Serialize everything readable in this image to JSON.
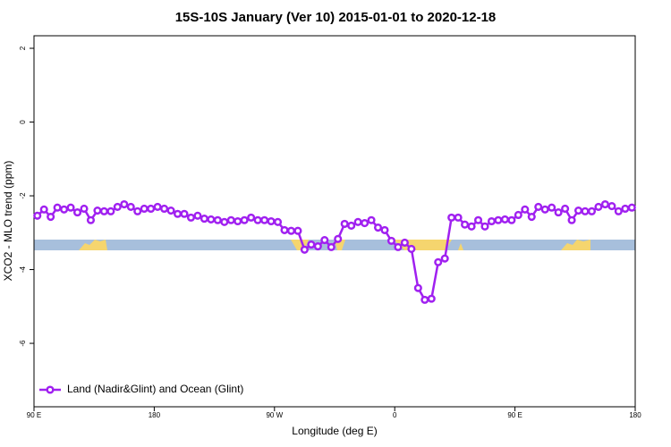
{
  "chart_data": {
    "type": "line",
    "title": "15S-10S January (Ver 10)   2015-01-01 to 2020-12-18",
    "x_label": "Longitude (deg E)",
    "y_label": "XCO2 - MLO trend (ppm)",
    "x": [
      92.5,
      97.5,
      102.5,
      107.5,
      112.5,
      117.5,
      122.5,
      127.5,
      132.5,
      137.5,
      142.5,
      147.5,
      152.5,
      157.5,
      162.5,
      167.5,
      172.5,
      177.5,
      182.5,
      187.5,
      192.5,
      197.5,
      202.5,
      207.5,
      212.5,
      217.5,
      222.5,
      227.5,
      232.5,
      237.5,
      242.5,
      247.5,
      252.5,
      257.5,
      262.5,
      267.5,
      272.5,
      277.5,
      282.5,
      287.5,
      292.5,
      297.5,
      302.5,
      307.5,
      312.5,
      317.5,
      322.5,
      327.5,
      332.5,
      337.5,
      342.5,
      347.5,
      352.5,
      357.5,
      362.5,
      367.5,
      372.5,
      377.5,
      382.5,
      387.5,
      392.5,
      397.5,
      402.5,
      407.5,
      412.5,
      417.5,
      422.5,
      427.5,
      432.5,
      437.5,
      442.5,
      447.5,
      452.5,
      457.5,
      462.5,
      467.5,
      472.5,
      477.5,
      482.5,
      487.5,
      492.5,
      497.5,
      502.5,
      507.5,
      512.5,
      517.5,
      522.5,
      527.5,
      532.5,
      537.5
    ],
    "series": [
      {
        "name": "Land (Nadir&Glint) and Ocean (Glint)",
        "color": "#a020f0",
        "values": [
          -2.54,
          -2.37,
          -2.57,
          -2.32,
          -2.37,
          -2.32,
          -2.45,
          -2.35,
          -2.66,
          -2.4,
          -2.42,
          -2.42,
          -2.3,
          -2.23,
          -2.3,
          -2.42,
          -2.35,
          -2.35,
          -2.3,
          -2.35,
          -2.4,
          -2.49,
          -2.49,
          -2.59,
          -2.54,
          -2.62,
          -2.64,
          -2.66,
          -2.71,
          -2.66,
          -2.69,
          -2.66,
          -2.59,
          -2.66,
          -2.66,
          -2.69,
          -2.71,
          -2.93,
          -2.95,
          -2.95,
          -3.46,
          -3.32,
          -3.37,
          -3.2,
          -3.39,
          -3.17,
          -2.76,
          -2.81,
          -2.71,
          -2.74,
          -2.66,
          -2.86,
          -2.93,
          -3.22,
          -3.39,
          -3.27,
          -3.44,
          -4.5,
          -4.82,
          -4.79,
          -3.8,
          -3.7,
          -2.59,
          -2.59,
          -2.78,
          -2.83,
          -2.66,
          -2.83,
          -2.69,
          -2.66,
          -2.64,
          -2.66,
          -2.52,
          -2.37,
          -2.57,
          -2.3,
          -2.37,
          -2.32,
          -2.45,
          -2.35,
          -2.66,
          -2.4,
          -2.42,
          -2.42,
          -2.3,
          -2.23,
          -2.28,
          -2.42,
          -2.35,
          -2.32
        ]
      }
    ],
    "xlim": [
      90,
      540
    ],
    "xticks": [
      {
        "value": 90,
        "label": "90 E"
      },
      180,
      {
        "value": 270,
        "label": "90 W"
      },
      {
        "value": 360,
        "label": "0"
      },
      {
        "value": 450,
        "label": "90 E"
      },
      {
        "value": 540,
        "label": "180"
      }
    ],
    "ylim": [
      -7.72,
      2.34
    ],
    "yticks": [
      2,
      0,
      -2,
      -4,
      -6
    ],
    "legend": "bottom-left"
  }
}
